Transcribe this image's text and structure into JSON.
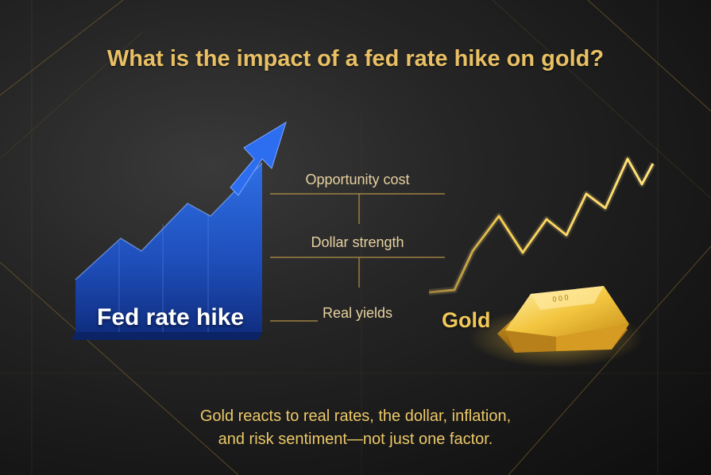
{
  "title": "What is the impact of a fed rate hike on gold?",
  "cause_label": "Fed rate hike",
  "effect_label": "Gold",
  "factors": [
    "Opportunity cost",
    "Dollar strength",
    "Real yields"
  ],
  "footer": {
    "line1": "Gold reacts to real rates, the dollar, inflation,",
    "line2": "and risk sentiment—not just one factor."
  },
  "colors": {
    "accent_gold": "#e9c064",
    "rate_blue": "#1f5fd6",
    "background": "#1c1c1c"
  },
  "icons": [
    "up-arrow-icon",
    "gold-line-icon",
    "gold-bar-icon"
  ]
}
